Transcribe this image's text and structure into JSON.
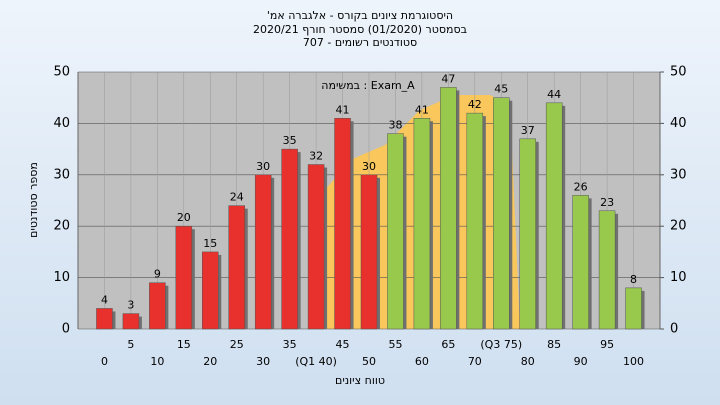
{
  "chart_data": {
    "type": "bar",
    "title": [
      "'היסטוגרמת ציונים בקורס - אלגברה אמ",
      "בסמסטר  (01/2020)  סמסטר חורף 2020/21",
      "סטודנטים רשומים - 707"
    ],
    "legend_text": "במשימה : Exam_A",
    "x_label": "טווח ציונים",
    "y_label": "מספר סטודנטים",
    "x": [
      0,
      5,
      10,
      15,
      20,
      25,
      30,
      35,
      40,
      45,
      50,
      55,
      60,
      65,
      70,
      75,
      80,
      85,
      90,
      95,
      100
    ],
    "values": [
      4,
      3,
      9,
      20,
      15,
      24,
      30,
      35,
      32,
      41,
      30,
      38,
      41,
      47,
      42,
      45,
      37,
      44,
      26,
      23,
      8
    ],
    "colors": [
      "#e8302c",
      "#e8302c",
      "#e8302c",
      "#e8302c",
      "#e8302c",
      "#e8302c",
      "#e8302c",
      "#e8302c",
      "#e8302c",
      "#e8302c",
      "#e8302c",
      "#98c84c",
      "#98c84c",
      "#98c84c",
      "#98c84c",
      "#98c84c",
      "#98c84c",
      "#98c84c",
      "#98c84c",
      "#98c84c",
      "#98c84c"
    ],
    "xlim": [
      -5,
      105
    ],
    "xticks": [
      0,
      5,
      10,
      15,
      20,
      25,
      30,
      35,
      {
        "value": 40,
        "label": "(Q1 40)"
      },
      45,
      50,
      55,
      60,
      65,
      70,
      {
        "value": 75,
        "label": "(Q3 75)"
      },
      80,
      85,
      90,
      95,
      100
    ],
    "ylim": [
      0,
      50
    ],
    "yticks": [
      0,
      10,
      20,
      30,
      40,
      50
    ],
    "y2lim": [
      0,
      50
    ],
    "y2ticks": [
      0,
      10,
      20,
      30,
      40,
      50
    ],
    "grid": true
  }
}
